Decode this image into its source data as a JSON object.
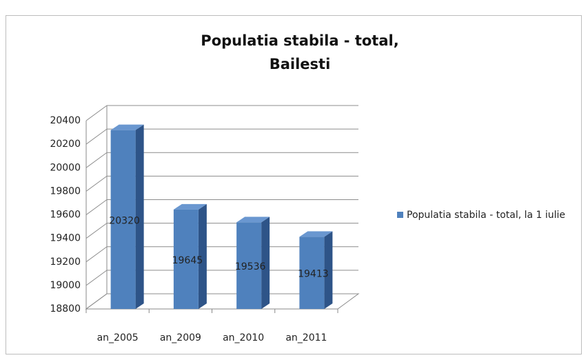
{
  "chart_data": {
    "type": "bar",
    "title": "Populatia stabila - total, Bailesti",
    "categories": [
      "an_2005",
      "an_2009",
      "an_2010",
      "an_2011"
    ],
    "series": [
      {
        "name": "Populatia stabila - total, la 1 iulie",
        "color": "#4f81bd",
        "values": [
          20320,
          19645,
          19536,
          19413
        ]
      }
    ],
    "ylim": [
      18800,
      20400
    ],
    "yticks": [
      18800,
      19000,
      19200,
      19400,
      19600,
      19800,
      20000,
      20200,
      20400
    ],
    "grid": true,
    "legend": "right"
  }
}
